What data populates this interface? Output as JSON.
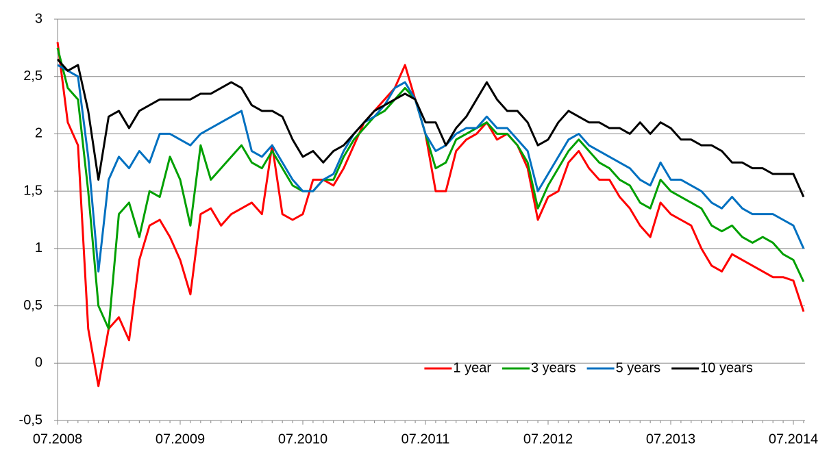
{
  "chart_data": {
    "type": "line",
    "x": [
      "07.2008",
      null,
      null,
      null,
      null,
      null,
      null,
      null,
      null,
      null,
      null,
      null,
      "07.2009",
      null,
      null,
      null,
      null,
      null,
      null,
      null,
      null,
      null,
      null,
      null,
      "07.2010",
      null,
      null,
      null,
      null,
      null,
      null,
      null,
      null,
      null,
      null,
      null,
      "07.2011",
      null,
      null,
      null,
      null,
      null,
      null,
      null,
      null,
      null,
      null,
      null,
      "07.2012",
      null,
      null,
      null,
      null,
      null,
      null,
      null,
      null,
      null,
      null,
      null,
      "07.2013",
      null,
      null,
      null,
      null,
      null,
      null,
      null,
      null,
      null,
      null,
      null,
      "07.2014",
      null
    ],
    "series": [
      {
        "name": "1 year",
        "color": "#ff0000",
        "values": [
          2.8,
          2.1,
          1.9,
          0.3,
          -0.2,
          0.3,
          0.4,
          0.2,
          0.9,
          1.2,
          1.25,
          1.1,
          0.9,
          0.6,
          1.3,
          1.35,
          1.2,
          1.3,
          1.35,
          1.4,
          1.3,
          1.9,
          1.3,
          1.25,
          1.3,
          1.6,
          1.6,
          1.55,
          1.7,
          1.9,
          2.1,
          2.2,
          2.3,
          2.4,
          2.6,
          2.3,
          2.0,
          1.5,
          1.5,
          1.85,
          1.95,
          2.0,
          2.1,
          1.95,
          2.0,
          1.9,
          1.7,
          1.25,
          1.45,
          1.5,
          1.75,
          1.85,
          1.7,
          1.6,
          1.6,
          1.45,
          1.35,
          1.2,
          1.1,
          1.4,
          1.3,
          1.25,
          1.2,
          1.0,
          0.85,
          0.8,
          0.95,
          0.9,
          0.85,
          0.8,
          0.75,
          0.75,
          0.72,
          0.45
        ]
      },
      {
        "name": "3 years",
        "color": "#00a000",
        "values": [
          2.75,
          2.4,
          2.3,
          1.5,
          0.5,
          0.3,
          1.3,
          1.4,
          1.1,
          1.5,
          1.45,
          1.8,
          1.6,
          1.2,
          1.9,
          1.6,
          1.7,
          1.8,
          1.9,
          1.75,
          1.7,
          1.85,
          1.7,
          1.55,
          1.5,
          1.5,
          1.6,
          1.6,
          1.8,
          1.95,
          2.05,
          2.15,
          2.2,
          2.3,
          2.4,
          2.3,
          2.0,
          1.7,
          1.75,
          1.95,
          2.0,
          2.05,
          2.1,
          2.0,
          2.0,
          1.9,
          1.75,
          1.35,
          1.55,
          1.7,
          1.85,
          1.95,
          1.85,
          1.75,
          1.7,
          1.6,
          1.55,
          1.4,
          1.35,
          1.6,
          1.5,
          1.45,
          1.4,
          1.35,
          1.2,
          1.15,
          1.2,
          1.1,
          1.05,
          1.1,
          1.05,
          0.95,
          0.9,
          0.71
        ]
      },
      {
        "name": "5 years",
        "color": "#0070c0",
        "values": [
          2.6,
          2.55,
          2.5,
          1.8,
          0.8,
          1.6,
          1.8,
          1.7,
          1.85,
          1.75,
          2.0,
          2.0,
          1.95,
          1.9,
          2.0,
          2.05,
          2.1,
          2.15,
          2.2,
          1.85,
          1.8,
          1.9,
          1.75,
          1.6,
          1.5,
          1.5,
          1.6,
          1.65,
          1.85,
          2.0,
          2.1,
          2.15,
          2.25,
          2.4,
          2.45,
          2.3,
          2.0,
          1.85,
          1.9,
          2.0,
          2.05,
          2.05,
          2.15,
          2.05,
          2.05,
          1.95,
          1.85,
          1.5,
          1.65,
          1.8,
          1.95,
          2.0,
          1.9,
          1.85,
          1.8,
          1.75,
          1.7,
          1.6,
          1.55,
          1.75,
          1.6,
          1.6,
          1.55,
          1.5,
          1.4,
          1.35,
          1.45,
          1.35,
          1.3,
          1.3,
          1.3,
          1.25,
          1.2,
          1.0
        ]
      },
      {
        "name": "10 years",
        "color": "#000000",
        "values": [
          2.65,
          2.55,
          2.6,
          2.2,
          1.6,
          2.15,
          2.2,
          2.05,
          2.2,
          2.25,
          2.3,
          2.3,
          2.3,
          2.3,
          2.35,
          2.35,
          2.4,
          2.45,
          2.4,
          2.25,
          2.2,
          2.2,
          2.15,
          1.95,
          1.8,
          1.85,
          1.75,
          1.85,
          1.9,
          2.0,
          2.1,
          2.2,
          2.25,
          2.3,
          2.35,
          2.3,
          2.1,
          2.1,
          1.9,
          2.05,
          2.15,
          2.3,
          2.45,
          2.3,
          2.2,
          2.2,
          2.1,
          1.9,
          1.95,
          2.1,
          2.2,
          2.15,
          2.1,
          2.1,
          2.05,
          2.05,
          2.0,
          2.1,
          2.0,
          2.1,
          2.05,
          1.95,
          1.95,
          1.9,
          1.9,
          1.85,
          1.75,
          1.75,
          1.7,
          1.7,
          1.65,
          1.65,
          1.65,
          1.45
        ]
      }
    ],
    "ylim": [
      -0.5,
      3
    ],
    "yticks": [
      {
        "value": -0.5,
        "label": "-0,5"
      },
      0,
      {
        "value": 0.5,
        "label": "0,5"
      },
      1,
      {
        "value": 1.5,
        "label": "1,5"
      },
      2,
      {
        "value": 2.5,
        "label": "2,5"
      },
      3
    ],
    "grid": true,
    "legend": "bottom-right"
  }
}
